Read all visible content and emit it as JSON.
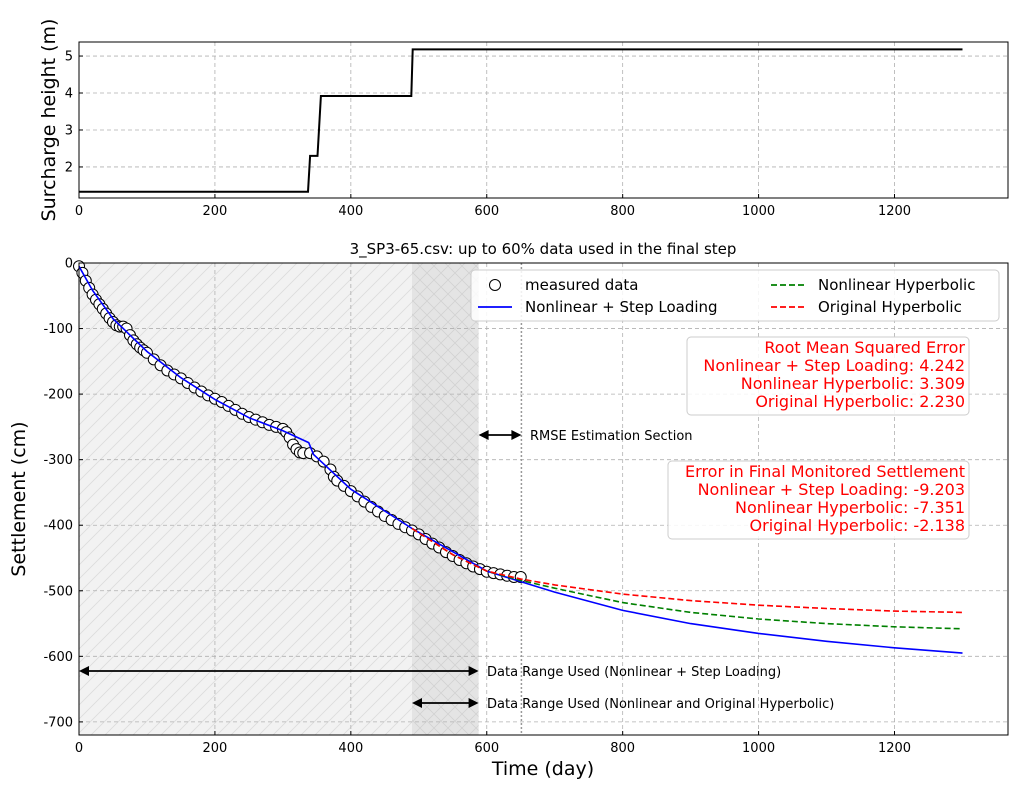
{
  "chart_data": [
    {
      "type": "line",
      "ylabel": "Surcharge height (m)",
      "xlabel": "",
      "xlim": [
        0,
        1367
      ],
      "ylim": [
        1.16,
        5.38
      ],
      "xticks": [
        0,
        200,
        400,
        600,
        800,
        1000,
        1200
      ],
      "yticks": [
        2,
        3,
        4,
        5
      ],
      "grid": true,
      "series": [
        {
          "color": "#000000",
          "x": [
            0,
            337,
            340,
            351,
            356,
            489,
            491,
            1300
          ],
          "y": [
            1.33,
            1.33,
            2.3,
            2.3,
            3.92,
            3.92,
            5.18,
            5.18
          ]
        }
      ]
    },
    {
      "type": "scatter+line",
      "title": "3_SP3-65.csv: up to 60% data used in the final step",
      "xlabel": "Time (day)",
      "ylabel": "Settlement (cm)",
      "xlim": [
        0,
        1367
      ],
      "ylim": [
        -720,
        0
      ],
      "xticks": [
        0,
        200,
        400,
        600,
        800,
        1000,
        1200
      ],
      "yticks": [
        0,
        -100,
        -200,
        -300,
        -400,
        -500,
        -600,
        -700
      ],
      "grid": true,
      "legend_position": "top-right",
      "measured": {
        "name": "measured data",
        "x": [
          0,
          5,
          10,
          15,
          20,
          25,
          30,
          35,
          40,
          45,
          50,
          55,
          60,
          65,
          70,
          75,
          80,
          85,
          90,
          95,
          100,
          110,
          120,
          130,
          140,
          150,
          160,
          170,
          180,
          190,
          200,
          210,
          220,
          230,
          240,
          250,
          260,
          270,
          280,
          290,
          300,
          305,
          310,
          315,
          320,
          325,
          330,
          340,
          350,
          360,
          370,
          375,
          380,
          390,
          400,
          410,
          420,
          430,
          440,
          450,
          460,
          470,
          480,
          490,
          500,
          510,
          520,
          530,
          540,
          550,
          560,
          570,
          580,
          590,
          600,
          610,
          620,
          630,
          640,
          650
        ],
        "y": [
          -5,
          -15,
          -27,
          -38,
          -48,
          -56,
          -63,
          -70,
          -77,
          -84,
          -90,
          -95,
          -97,
          -97,
          -100,
          -110,
          -118,
          -124,
          -129,
          -133,
          -137,
          -147,
          -156,
          -164,
          -170,
          -176,
          -183,
          -190,
          -196,
          -202,
          -207,
          -212,
          -218,
          -224,
          -230,
          -235,
          -239,
          -243,
          -247,
          -250,
          -253,
          -258,
          -266,
          -277,
          -284,
          -289,
          -290,
          -290,
          -295,
          -303,
          -315,
          -326,
          -332,
          -340,
          -348,
          -356,
          -364,
          -372,
          -379,
          -386,
          -392,
          -398,
          -403,
          -408,
          -414,
          -421,
          -428,
          -434,
          -441,
          -447,
          -453,
          -458,
          -463,
          -467,
          -471,
          -473,
          -475,
          -477,
          -479,
          -479
        ]
      },
      "series": [
        {
          "name": "Nonlinear + Step Loading",
          "color": "#0000ff",
          "dash": false,
          "x": [
            0,
            20,
            50,
            100,
            150,
            200,
            250,
            300,
            338,
            345,
            400,
            490,
            600,
            650,
            700,
            800,
            900,
            1000,
            1100,
            1200,
            1300
          ],
          "y": [
            -5,
            -42,
            -85,
            -135,
            -175,
            -208,
            -236,
            -256,
            -274,
            -292,
            -345,
            -405,
            -470,
            -486,
            -502,
            -530,
            -550,
            -565,
            -577,
            -587,
            -595
          ]
        },
        {
          "name": "Nonlinear Hyperbolic",
          "color": "#008000",
          "dash": true,
          "x": [
            490,
            550,
            600,
            650,
            700,
            800,
            900,
            1000,
            1100,
            1200,
            1300
          ],
          "y": [
            -405,
            -445,
            -470,
            -484,
            -496,
            -518,
            -533,
            -543,
            -550,
            -555,
            -558
          ]
        },
        {
          "name": "Original Hyperbolic",
          "color": "#ff0000",
          "dash": true,
          "x": [
            490,
            550,
            600,
            650,
            700,
            800,
            900,
            1000,
            1100,
            1200,
            1300
          ],
          "y": [
            -405,
            -445,
            -470,
            -482,
            -491,
            -505,
            -515,
            -522,
            -527,
            -531,
            -533
          ]
        }
      ],
      "regions": {
        "step_loading_range": [
          0,
          588
        ],
        "hyperbolic_range": [
          490,
          588
        ],
        "rmse_range": [
          588,
          651
        ],
        "final_monitored_day": 651
      },
      "annotations": {
        "rmse_section": "RMSE Estimation Section",
        "range_step": "Data Range Used (Nonlinear + Step Loading)",
        "range_hyper": "Data Range Used (Nonlinear and Original Hyperbolic)",
        "rmse_box": [
          "Root Mean Squared Error",
          "Nonlinear + Step Loading: 4.242",
          "Nonlinear Hyperbolic: 3.309",
          "Original Hyperbolic: 2.230"
        ],
        "error_box": [
          "Error in Final Monitored Settlement",
          "Nonlinear + Step Loading: -9.203",
          "Nonlinear Hyperbolic: -7.351",
          "Original Hyperbolic: -2.138"
        ],
        "box_text_color": "#ff0000"
      }
    }
  ]
}
